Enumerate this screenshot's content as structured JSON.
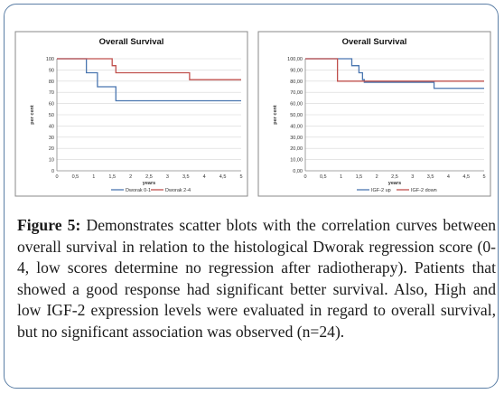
{
  "caption": {
    "label": "Figure 5:",
    "text": " Demonstrates scatter blots with the correlation curves between overall survival in relation to the histological Dworak regression score (0-4, low scores determine no regression after radiotherapy). Patients that showed a good response had significant better survival. Also, High and low IGF-2 expression levels were evaluated in regard to overall survival, but no significant association was observed (n=24)."
  },
  "chart_data": [
    {
      "type": "line",
      "step": true,
      "title": "Overall Survival",
      "xlabel": "years",
      "ylabel": "per cent",
      "xlim": [
        0,
        5
      ],
      "ylim": [
        0,
        100
      ],
      "x_ticks": [
        "0",
        "0,5",
        "1",
        "1,5",
        "2",
        "2,5",
        "3",
        "3,5",
        "4",
        "4,5",
        "5"
      ],
      "y_ticks": [
        "0",
        "10",
        "20",
        "30",
        "40",
        "50",
        "60",
        "70",
        "80",
        "90",
        "100"
      ],
      "grid": true,
      "legend": "bottom",
      "series": [
        {
          "name": "Dworak 0-1",
          "color": "#4a76b0",
          "x": [
            0,
            0.8,
            0.8,
            1.1,
            1.1,
            1.6,
            1.6,
            5.0
          ],
          "y": [
            100,
            100,
            87.5,
            87.5,
            75,
            75,
            62.5,
            62.5
          ]
        },
        {
          "name": "Dworak 2-4",
          "color": "#c0504d",
          "x": [
            0,
            1.5,
            1.5,
            1.6,
            1.6,
            3.6,
            3.6,
            5.0
          ],
          "y": [
            100,
            100,
            93.8,
            93.8,
            87.5,
            87.5,
            81.3,
            81.3
          ]
        }
      ]
    },
    {
      "type": "line",
      "step": true,
      "title": "Overall Survival",
      "xlabel": "years",
      "ylabel": "per cent",
      "xlim": [
        0,
        5
      ],
      "ylim": [
        0,
        100
      ],
      "x_ticks": [
        "0",
        "0,5",
        "1",
        "1,5",
        "2",
        "2,5",
        "3",
        "3,5",
        "4",
        "4,5",
        "5"
      ],
      "y_ticks": [
        "0,00",
        "10,00",
        "20,00",
        "30,00",
        "40,00",
        "50,00",
        "60,00",
        "70,00",
        "80,00",
        "90,00",
        "100,00"
      ],
      "grid": true,
      "legend": "bottom",
      "series": [
        {
          "name": "IGF-2 up",
          "color": "#4a76b0",
          "x": [
            0,
            1.3,
            1.3,
            1.5,
            1.5,
            1.6,
            1.6,
            1.65,
            1.65,
            3.6,
            3.6,
            5.0
          ],
          "y": [
            100,
            100,
            93.8,
            93.8,
            87.5,
            87.5,
            81.3,
            81.3,
            78.9,
            78.9,
            73.6,
            73.6
          ]
        },
        {
          "name": "IGF-2 down",
          "color": "#c0504d",
          "x": [
            0,
            0.9,
            0.9,
            5.0
          ],
          "y": [
            100,
            100,
            80,
            80
          ]
        }
      ]
    }
  ]
}
